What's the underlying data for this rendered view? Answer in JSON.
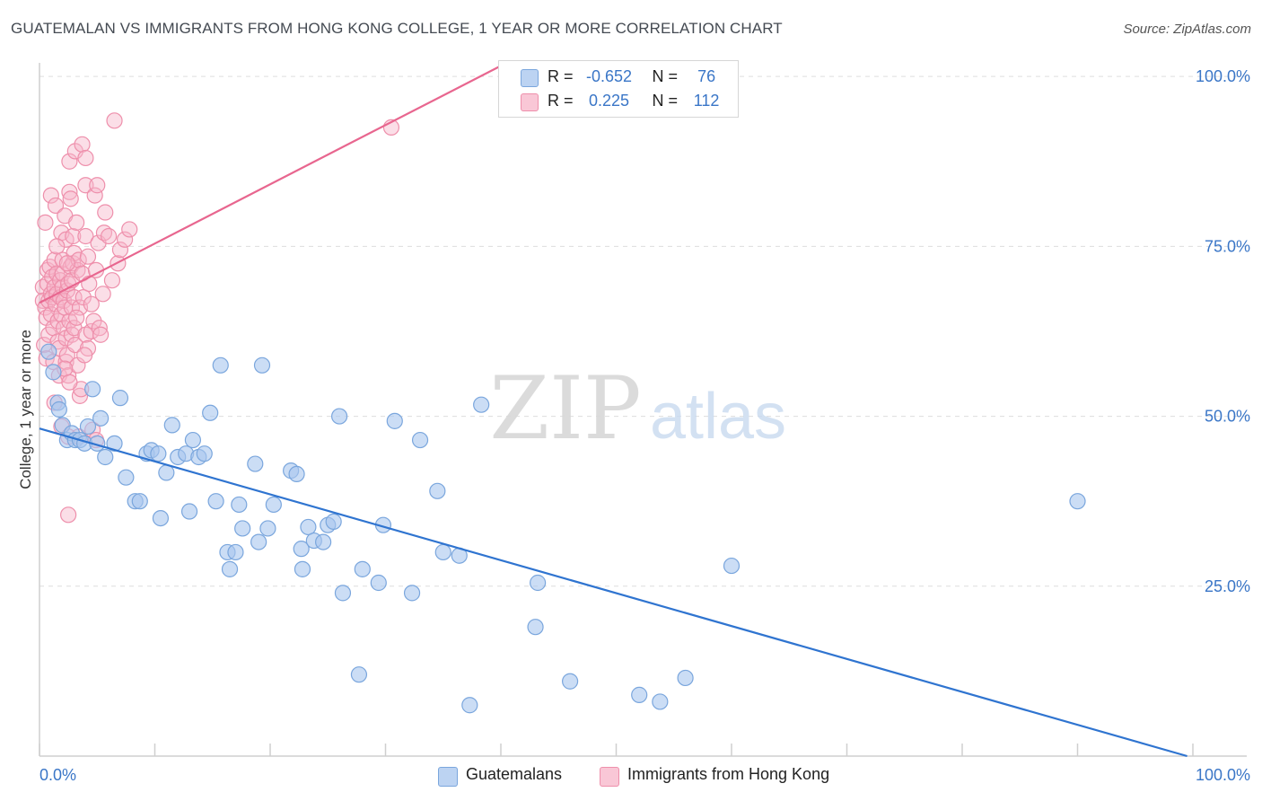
{
  "title": "GUATEMALAN VS IMMIGRANTS FROM HONG KONG COLLEGE, 1 YEAR OR MORE CORRELATION CHART",
  "source": "Source: ZipAtlas.com",
  "watermark": {
    "zip": "ZIP",
    "atlas": "atlas"
  },
  "legend": {
    "rows": [
      {
        "r_label": "R =",
        "r_value": "-0.652",
        "n_label": "N =",
        "n_value": "76"
      },
      {
        "r_label": "R =",
        "r_value": "0.225",
        "n_label": "N =",
        "n_value": "112"
      }
    ]
  },
  "bottom_legend": [
    "Guatemalans",
    "Immigrants from Hong Kong"
  ],
  "colors": {
    "blue_fill": "#a9c7ef",
    "blue_stroke": "#7aa6dd",
    "blue_line": "#2f74d0",
    "pink_fill": "#f6b6c9",
    "pink_stroke": "#ee8fab",
    "pink_line": "#e8668f",
    "tick_text": "#3a76c7",
    "grid": "#dddddd"
  },
  "chart_data": {
    "type": "scatter",
    "title": "GUATEMALAN VS IMMIGRANTS FROM HONG KONG COLLEGE, 1 YEAR OR MORE CORRELATION CHART",
    "xlabel": "",
    "ylabel": "College, 1 year or more",
    "xlim": [
      0,
      100
    ],
    "ylim": [
      0,
      102
    ],
    "x_tick_labels": [
      "0.0%",
      "100.0%"
    ],
    "y_ticks": [
      25,
      50,
      75,
      100
    ],
    "y_tick_labels": [
      "25.0%",
      "50.0%",
      "75.0%",
      "100.0%"
    ],
    "grid": true,
    "series": [
      {
        "name": "Guatemalans",
        "r": -0.652,
        "n": 76,
        "trend": {
          "x": [
            0,
            99.5
          ],
          "y": [
            48.2,
            0
          ]
        },
        "points": [
          [
            0.8,
            59.5
          ],
          [
            1.2,
            56.5
          ],
          [
            1.6,
            52
          ],
          [
            1.7,
            51
          ],
          [
            2,
            48.7
          ],
          [
            2.4,
            46.5
          ],
          [
            2.8,
            47.5
          ],
          [
            3.1,
            46.5
          ],
          [
            3.5,
            46.5
          ],
          [
            3.9,
            46
          ],
          [
            4.2,
            48.5
          ],
          [
            4.6,
            54
          ],
          [
            5,
            46
          ],
          [
            5.3,
            49.7
          ],
          [
            5.7,
            44
          ],
          [
            6.5,
            46
          ],
          [
            7,
            52.7
          ],
          [
            7.5,
            41
          ],
          [
            8.3,
            37.5
          ],
          [
            8.7,
            37.5
          ],
          [
            9.3,
            44.5
          ],
          [
            9.7,
            45
          ],
          [
            10.3,
            44.5
          ],
          [
            10.5,
            35
          ],
          [
            11,
            41.7
          ],
          [
            11.5,
            48.7
          ],
          [
            12,
            44
          ],
          [
            12.7,
            44.5
          ],
          [
            13,
            36
          ],
          [
            13.3,
            46.5
          ],
          [
            13.8,
            44
          ],
          [
            14.3,
            44.5
          ],
          [
            14.8,
            50.5
          ],
          [
            15.3,
            37.5
          ],
          [
            15.7,
            57.5
          ],
          [
            16.3,
            30
          ],
          [
            16.5,
            27.5
          ],
          [
            17,
            30
          ],
          [
            17.3,
            37
          ],
          [
            17.6,
            33.5
          ],
          [
            18.7,
            43
          ],
          [
            19,
            31.5
          ],
          [
            19.3,
            57.5
          ],
          [
            19.8,
            33.5
          ],
          [
            20.3,
            37
          ],
          [
            21.8,
            42
          ],
          [
            22.3,
            41.5
          ],
          [
            22.7,
            30.5
          ],
          [
            22.8,
            27.5
          ],
          [
            23.3,
            33.7
          ],
          [
            23.8,
            31.7
          ],
          [
            24.6,
            31.5
          ],
          [
            25,
            34
          ],
          [
            25.5,
            34.5
          ],
          [
            26,
            50
          ],
          [
            26.3,
            24
          ],
          [
            27.7,
            12
          ],
          [
            28,
            27.5
          ],
          [
            29.4,
            25.5
          ],
          [
            29.8,
            34
          ],
          [
            30.8,
            49.3
          ],
          [
            32.3,
            24
          ],
          [
            33,
            46.5
          ],
          [
            34.5,
            39
          ],
          [
            35,
            30
          ],
          [
            36.4,
            29.5
          ],
          [
            37.3,
            7.5
          ],
          [
            38.3,
            51.7
          ],
          [
            43,
            19
          ],
          [
            43.2,
            25.5
          ],
          [
            46,
            11
          ],
          [
            52,
            9
          ],
          [
            53.8,
            8
          ],
          [
            56,
            11.5
          ],
          [
            60,
            28
          ],
          [
            90,
            37.5
          ]
        ]
      },
      {
        "name": "Immigrants from Hong Kong",
        "r": 0.225,
        "n": 112,
        "trend": {
          "x": [
            0,
            40.5
          ],
          "y": [
            66.7,
            102
          ]
        },
        "points": [
          [
            0.3,
            69
          ],
          [
            0.3,
            67
          ],
          [
            0.4,
            60.5
          ],
          [
            0.5,
            66
          ],
          [
            0.5,
            78.5
          ],
          [
            0.6,
            58.5
          ],
          [
            0.6,
            64.5
          ],
          [
            0.7,
            71.5
          ],
          [
            0.7,
            69.5
          ],
          [
            0.8,
            62
          ],
          [
            0.8,
            67
          ],
          [
            0.9,
            72
          ],
          [
            1,
            82.5
          ],
          [
            1,
            68
          ],
          [
            1,
            65
          ],
          [
            1.1,
            70.5
          ],
          [
            1.1,
            67.5
          ],
          [
            1.2,
            63
          ],
          [
            1.2,
            58
          ],
          [
            1.3,
            52
          ],
          [
            1.3,
            73
          ],
          [
            1.3,
            69
          ],
          [
            1.4,
            81
          ],
          [
            1.4,
            66.5
          ],
          [
            1.5,
            71
          ],
          [
            1.5,
            68
          ],
          [
            1.6,
            64
          ],
          [
            1.6,
            61
          ],
          [
            1.7,
            56
          ],
          [
            1.7,
            60
          ],
          [
            1.8,
            67.5
          ],
          [
            1.8,
            70
          ],
          [
            1.9,
            77
          ],
          [
            1.9,
            65
          ],
          [
            2,
            69
          ],
          [
            2,
            71
          ],
          [
            2,
            73
          ],
          [
            2.1,
            63
          ],
          [
            2.1,
            67
          ],
          [
            2.2,
            79.5
          ],
          [
            2.2,
            66
          ],
          [
            2.3,
            61.5
          ],
          [
            2.3,
            76
          ],
          [
            2.3,
            58
          ],
          [
            2.4,
            68.5
          ],
          [
            2.4,
            59
          ],
          [
            2.5,
            47
          ],
          [
            2.5,
            35.5
          ],
          [
            2.5,
            56
          ],
          [
            2.5,
            69.5
          ],
          [
            2.6,
            83
          ],
          [
            2.6,
            87.5
          ],
          [
            2.6,
            64
          ],
          [
            2.7,
            72
          ],
          [
            2.7,
            82
          ],
          [
            2.8,
            66
          ],
          [
            2.8,
            70
          ],
          [
            2.8,
            62
          ],
          [
            2.9,
            76.5
          ],
          [
            2.9,
            72.5
          ],
          [
            3,
            67.5
          ],
          [
            3,
            63
          ],
          [
            3,
            74
          ],
          [
            3.1,
            89
          ],
          [
            3.1,
            60.5
          ],
          [
            3.2,
            78.5
          ],
          [
            3.3,
            71.5
          ],
          [
            3.3,
            57.5
          ],
          [
            3.4,
            73
          ],
          [
            3.5,
            66
          ],
          [
            3.5,
            53
          ],
          [
            3.6,
            54
          ],
          [
            3.7,
            90
          ],
          [
            3.7,
            71
          ],
          [
            3.8,
            67.5
          ],
          [
            4,
            76.5
          ],
          [
            4,
            62
          ],
          [
            4,
            88
          ],
          [
            4,
            84
          ],
          [
            4.2,
            60
          ],
          [
            4.2,
            73.5
          ],
          [
            4.3,
            69.5
          ],
          [
            4.5,
            66.5
          ],
          [
            4.5,
            62.5
          ],
          [
            4.6,
            48
          ],
          [
            4.7,
            64
          ],
          [
            4.8,
            82.5
          ],
          [
            4.9,
            71.5
          ],
          [
            5,
            84
          ],
          [
            5.1,
            75.5
          ],
          [
            5.2,
            63
          ],
          [
            5.3,
            62
          ],
          [
            5.5,
            68
          ],
          [
            5.6,
            77
          ],
          [
            5.7,
            80
          ],
          [
            6,
            76.5
          ],
          [
            6.3,
            70
          ],
          [
            6.8,
            72.5
          ],
          [
            7,
            74.5
          ],
          [
            7.4,
            76
          ],
          [
            7.8,
            77.5
          ],
          [
            2.2,
            57
          ],
          [
            2.6,
            55
          ],
          [
            3.4,
            47
          ],
          [
            4.9,
            46.5
          ],
          [
            6.5,
            93.5
          ],
          [
            1.9,
            48.5
          ],
          [
            3.2,
            64.5
          ],
          [
            2.4,
            72.5
          ],
          [
            1.5,
            75
          ],
          [
            3.9,
            59
          ],
          [
            30.5,
            92.5
          ]
        ]
      }
    ]
  }
}
